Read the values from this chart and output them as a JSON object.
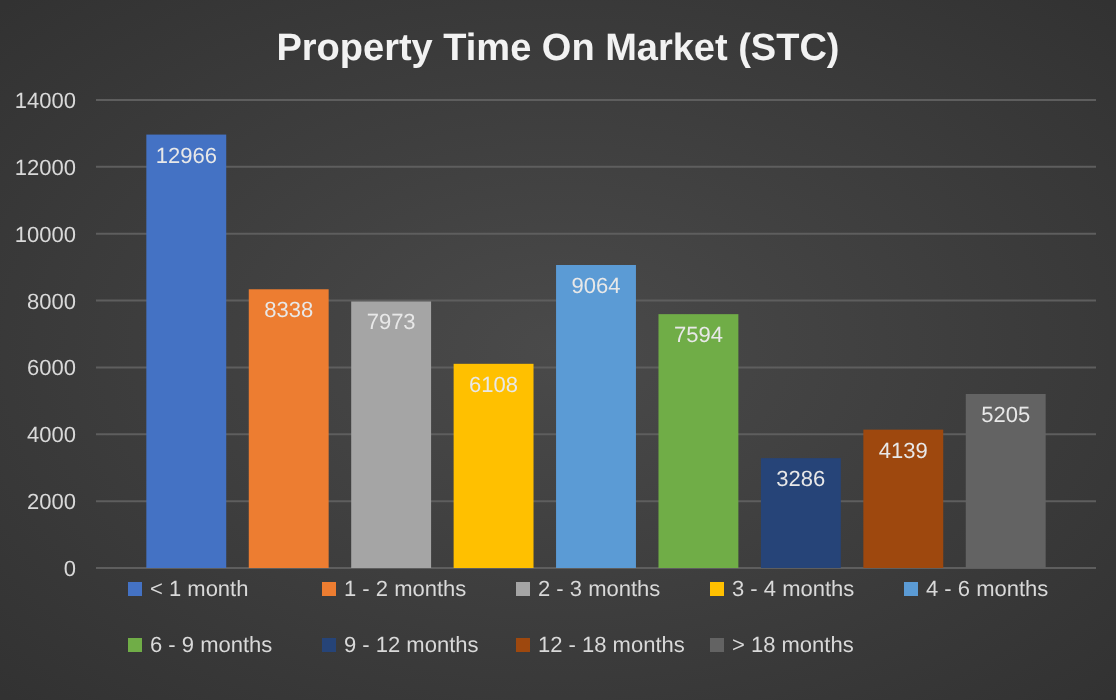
{
  "chart_data": {
    "type": "bar",
    "title": "Property Time On Market (STC)",
    "categories": [
      null
    ],
    "series": [
      {
        "name": "< 1 month",
        "color": "#4472c4",
        "values": [
          12966
        ]
      },
      {
        "name": "1 - 2 months",
        "color": "#ed7d31",
        "values": [
          8338
        ]
      },
      {
        "name": "2 - 3 months",
        "color": "#a5a5a5",
        "values": [
          7973
        ]
      },
      {
        "name": "3 - 4 months",
        "color": "#ffc000",
        "values": [
          6108
        ]
      },
      {
        "name": "4 - 6 months",
        "color": "#5b9bd5",
        "values": [
          9064
        ]
      },
      {
        "name": "6 - 9 months",
        "color": "#70ad47",
        "values": [
          7594
        ]
      },
      {
        "name": "9 - 12 months",
        "color": "#264478",
        "values": [
          3286
        ]
      },
      {
        "name": "12 - 18 months",
        "color": "#9e480e",
        "values": [
          4139
        ]
      },
      {
        "name": "> 18 months",
        "color": "#636363",
        "values": [
          5205
        ]
      }
    ],
    "ylim": [
      0,
      14000
    ],
    "yticks": [
      0,
      2000,
      4000,
      6000,
      8000,
      10000,
      12000,
      14000
    ],
    "grid": "y",
    "legend": "bottom",
    "data_labels": true
  }
}
